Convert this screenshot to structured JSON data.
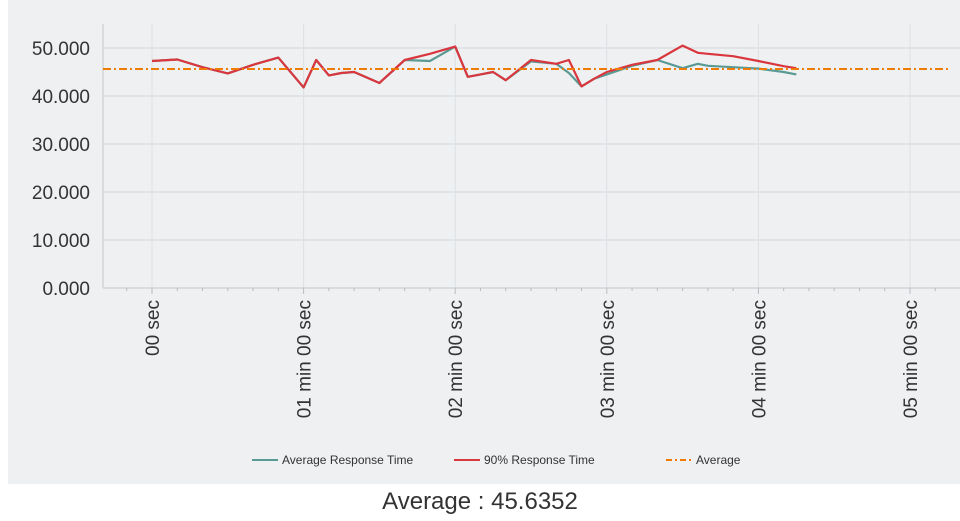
{
  "caption": "Average : 45.6352",
  "chart_data": {
    "type": "line",
    "title": "",
    "xlabel": "",
    "ylabel": "",
    "x_unit": "seconds",
    "xlim": [
      0,
      300
    ],
    "ylim": [
      0,
      50
    ],
    "y_ticks": [
      0,
      10,
      20,
      30,
      40,
      50
    ],
    "y_tick_labels": [
      "0.000",
      "10.000",
      "20.000",
      "30.000",
      "40.000",
      "50.000"
    ],
    "x_ticks": [
      0,
      60,
      120,
      180,
      240,
      300
    ],
    "x_tick_labels": [
      "00 sec",
      "01 min 00 sec",
      "02 min 00 sec",
      "03 min 00 sec",
      "04 min 00 sec",
      "05 min 00 sec"
    ],
    "grid": true,
    "legend_position": "bottom-center",
    "series": [
      {
        "name": "Average Response Time",
        "color": "#5b9a94",
        "style": "solid",
        "x": [
          0,
          10,
          20,
          30,
          40,
          50,
          60,
          65,
          70,
          75,
          80,
          90,
          100,
          110,
          120,
          125,
          130,
          135,
          140,
          150,
          160,
          165,
          170,
          175,
          180,
          190,
          200,
          210,
          216,
          220,
          230,
          240,
          250,
          255
        ],
        "y": [
          47.3,
          47.6,
          46.0,
          44.7,
          46.5,
          48.0,
          41.8,
          47.5,
          44.3,
          44.8,
          45.0,
          42.7,
          47.5,
          47.3,
          50.3,
          44.0,
          44.5,
          45.0,
          43.3,
          47.2,
          46.7,
          44.8,
          42.0,
          43.6,
          44.5,
          46.3,
          47.5,
          45.8,
          46.7,
          46.3,
          46.0,
          45.7,
          45.0,
          44.5
        ]
      },
      {
        "name": "90% Response Time",
        "color": "#d9363e",
        "style": "solid",
        "x": [
          0,
          10,
          20,
          30,
          40,
          50,
          60,
          65,
          70,
          75,
          80,
          90,
          100,
          110,
          120,
          125,
          130,
          135,
          140,
          150,
          160,
          165,
          170,
          175,
          180,
          190,
          200,
          210,
          216,
          220,
          230,
          240,
          250,
          255
        ],
        "y": [
          47.3,
          47.6,
          46.0,
          44.7,
          46.5,
          48.0,
          41.8,
          47.5,
          44.3,
          44.8,
          45.0,
          42.7,
          47.5,
          48.8,
          50.3,
          44.0,
          44.5,
          45.0,
          43.3,
          47.5,
          46.7,
          47.5,
          42.0,
          43.6,
          45.0,
          46.5,
          47.5,
          50.5,
          49.0,
          48.8,
          48.3,
          47.3,
          46.2,
          45.8
        ]
      },
      {
        "name": "Average",
        "color": "#f07b00",
        "style": "dashdot",
        "x": [
          -20,
          315
        ],
        "y": [
          45.6352,
          45.6352
        ]
      }
    ]
  }
}
